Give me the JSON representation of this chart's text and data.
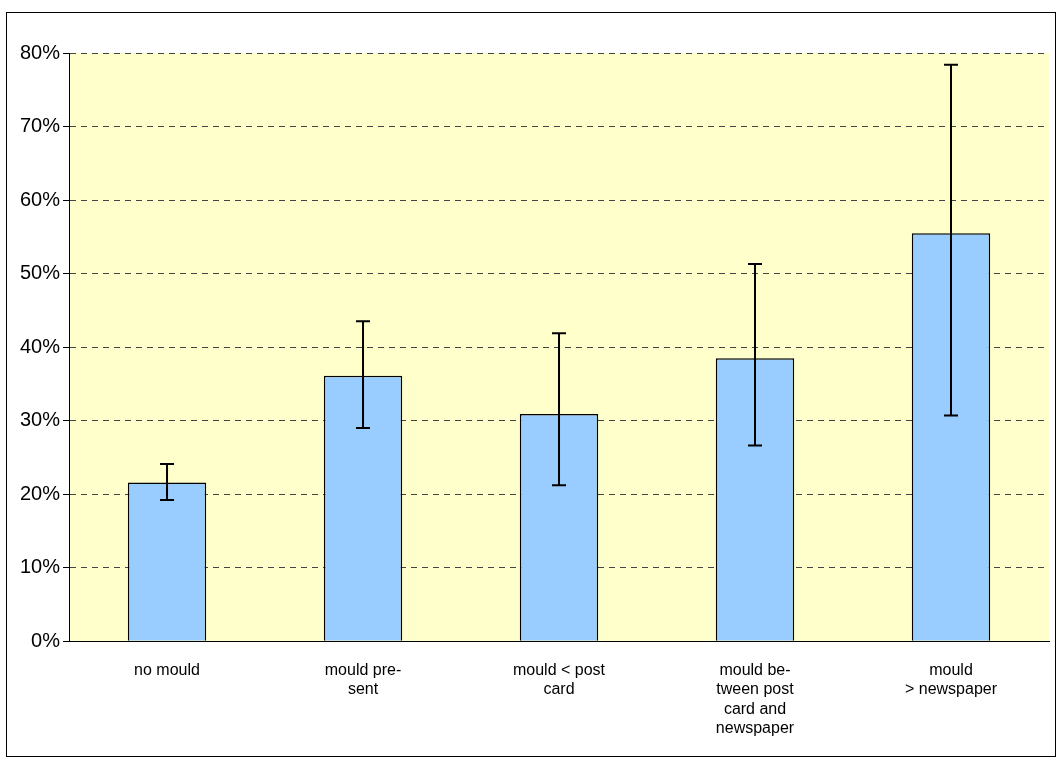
{
  "chart_data": {
    "type": "bar",
    "categories": [
      "no mould",
      "mould pre-\nsent",
      "mould < post\ncard",
      "mould be-\ntween post\ncard and\nnewspaper",
      "mould\n> newspaper"
    ],
    "values": [
      21.6,
      36.1,
      30.9,
      38.5,
      55.5
    ],
    "errors": [
      [
        19.2,
        24.1
      ],
      [
        29.0,
        43.5
      ],
      [
        21.2,
        41.9
      ],
      [
        26.6,
        51.3
      ],
      [
        30.7,
        78.4
      ]
    ],
    "color": "#99ccff",
    "ylim": [
      0,
      80
    ],
    "yticks": [
      {
        "value": 0,
        "label": "0%"
      },
      {
        "value": 10,
        "label": "10%"
      },
      {
        "value": 20,
        "label": "20%"
      },
      {
        "value": 30,
        "label": "30%"
      },
      {
        "value": 40,
        "label": "40%"
      },
      {
        "value": 50,
        "label": "50%"
      },
      {
        "value": 60,
        "label": "60%"
      },
      {
        "value": 70,
        "label": "70%"
      },
      {
        "value": 80,
        "label": "80%"
      }
    ],
    "grid": "y",
    "legend": false
  }
}
